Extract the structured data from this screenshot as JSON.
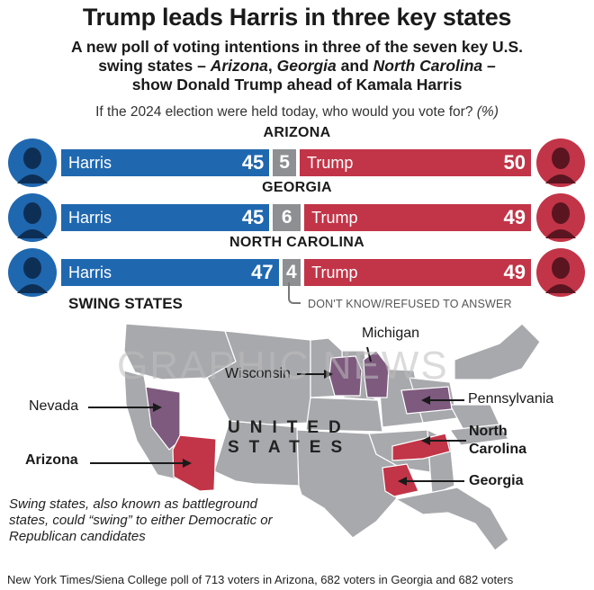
{
  "header": {
    "title": "Trump leads Harris in three key states",
    "subtitle_line1": "A new poll of voting intentions in three of the seven key U.S.",
    "subtitle_line2_pre": "swing states – ",
    "subtitle_az": "Arizona",
    "subtitle_sep1": ", ",
    "subtitle_ga": "Georgia",
    "subtitle_sep2": " and ",
    "subtitle_nc": "North Carolina",
    "subtitle_line2_post": " –",
    "subtitle_line3": "show Donald Trump ahead of Kamala Harris",
    "question": "If the 2024 election were held today, who would you vote for? ",
    "question_unit": "(%)"
  },
  "chart_data": {
    "type": "bar",
    "categories": [
      "ARIZONA",
      "GEORGIA",
      "NORTH CAROLINA"
    ],
    "series": [
      {
        "name": "Harris",
        "values": [
          45,
          45,
          47
        ],
        "color": "#1f68b0"
      },
      {
        "name": "",
        "values": [
          5,
          6,
          4
        ],
        "color": "#8d8f93"
      },
      {
        "name": "Trump",
        "values": [
          50,
          49,
          49
        ],
        "color": "#c23447"
      }
    ],
    "undecided_label": "DON'T KNOW/REFUSED TO ANSWER"
  },
  "map": {
    "heading": "SWING STATES",
    "country": "UNITED STATES",
    "country_line1": "UNITED",
    "country_line2": "STATES",
    "labels": {
      "michigan": "Michigan",
      "wisconsin": "Wisconsin",
      "pennsylvania": "Pennsylvania",
      "nevada": "Nevada",
      "arizona": "Arizona",
      "north_carolina_1": "North",
      "north_carolina_2": "Carolina",
      "georgia": "Georgia"
    },
    "colors": {
      "surveyed": "#c23447",
      "other_swing": "#7d5a7e",
      "land": "#a8a9ad"
    }
  },
  "note": "Swing states, also known as battleground states, could “swing” to either Democratic or Republican candidates",
  "source": "New York Times/Siena College poll of 713 voters in Arizona, 682 voters in Georgia and 682 voters",
  "watermark": "GRAPHIC NEWS"
}
